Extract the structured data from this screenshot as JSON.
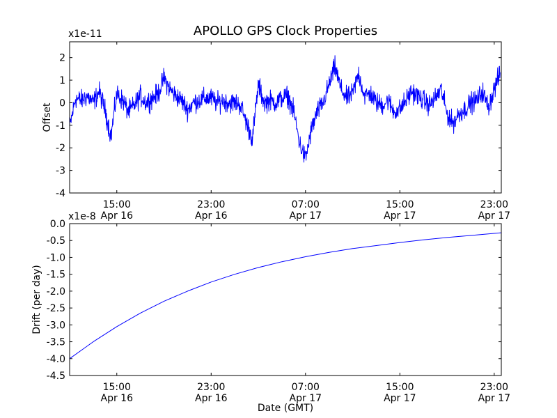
{
  "chart_data": [
    {
      "type": "line",
      "title": "APOLLO GPS Clock Properties",
      "ylabel": "Offset",
      "xlabel": "",
      "scale_label": "x1e-11",
      "ylim": [
        -4,
        2.7
      ],
      "xlim": [
        11.0,
        47.6
      ],
      "yticks": [
        {
          "value": -4,
          "label": "-4"
        },
        {
          "value": -3,
          "label": "-3"
        },
        {
          "value": -2,
          "label": "-2"
        },
        {
          "value": -1,
          "label": "-1"
        },
        {
          "value": 0,
          "label": "0"
        },
        {
          "value": 1,
          "label": "1"
        },
        {
          "value": 2,
          "label": "2"
        }
      ],
      "xticks": [
        {
          "value": 15,
          "time": "15:00",
          "date": "Apr 16"
        },
        {
          "value": 23,
          "time": "23:00",
          "date": "Apr 16"
        },
        {
          "value": 31,
          "time": "07:00",
          "date": "Apr 17"
        },
        {
          "value": 39,
          "time": "15:00",
          "date": "Apr 17"
        },
        {
          "value": 47,
          "time": "23:00",
          "date": "Apr 17"
        }
      ],
      "series_color": "#0000ff",
      "series": [
        {
          "name": "Offset",
          "x": [
            11.0,
            11.5,
            12.0,
            12.5,
            13.0,
            13.5,
            14.0,
            14.5,
            15.0,
            15.5,
            16.0,
            16.5,
            17.0,
            17.5,
            18.0,
            18.5,
            19.0,
            19.5,
            20.0,
            20.5,
            21.0,
            21.5,
            22.0,
            22.5,
            23.0,
            23.5,
            24.0,
            24.5,
            25.0,
            25.5,
            26.0,
            26.5,
            27.0,
            27.5,
            28.0,
            28.5,
            29.0,
            29.5,
            30.0,
            30.5,
            31.0,
            31.5,
            32.0,
            32.5,
            33.0,
            33.5,
            34.0,
            34.5,
            35.0,
            35.5,
            36.0,
            36.5,
            37.0,
            37.5,
            38.0,
            38.5,
            39.0,
            39.5,
            40.0,
            40.5,
            41.0,
            41.5,
            42.0,
            42.5,
            43.0,
            43.5,
            44.0,
            44.5,
            45.0,
            45.5,
            46.0,
            46.5,
            47.0,
            47.5
          ],
          "values": [
            -1.1,
            0.2,
            0.1,
            0.3,
            0.0,
            0.5,
            -0.3,
            -1.5,
            0.4,
            0.1,
            -0.4,
            -0.1,
            0.3,
            0.0,
            0.2,
            0.4,
            1.1,
            0.6,
            0.3,
            0.1,
            -0.3,
            0.0,
            0.1,
            0.2,
            0.2,
            0.0,
            0.1,
            0.0,
            0.0,
            -0.1,
            -0.9,
            -1.6,
            0.8,
            0.0,
            0.1,
            0.0,
            0.2,
            0.3,
            -0.4,
            -1.8,
            -2.5,
            -1.2,
            -0.4,
            0.0,
            0.8,
            1.6,
            0.6,
            0.2,
            0.4,
            1.3,
            0.3,
            0.4,
            0.0,
            -0.1,
            0.1,
            -0.4,
            -0.3,
            0.1,
            0.5,
            0.3,
            0.1,
            -0.1,
            0.2,
            0.6,
            -0.5,
            -0.9,
            -0.5,
            -0.3,
            0.0,
            0.1,
            0.5,
            -0.2,
            0.6,
            1.3
          ]
        }
      ]
    },
    {
      "type": "line",
      "title": "",
      "ylabel": "Drift (per day)",
      "xlabel": "Date (GMT)",
      "scale_label": "x1e-8",
      "ylim": [
        -4.5,
        0.0
      ],
      "xlim": [
        11.0,
        47.6
      ],
      "yticks": [
        {
          "value": -4.5,
          "label": "-4.5"
        },
        {
          "value": -4.0,
          "label": "-4.0"
        },
        {
          "value": -3.5,
          "label": "-3.5"
        },
        {
          "value": -3.0,
          "label": "-3.0"
        },
        {
          "value": -2.5,
          "label": "-2.5"
        },
        {
          "value": -2.0,
          "label": "-2.0"
        },
        {
          "value": -1.5,
          "label": "-1.5"
        },
        {
          "value": -1.0,
          "label": "-1.0"
        },
        {
          "value": -0.5,
          "label": "-0.5"
        },
        {
          "value": 0.0,
          "label": "0.0"
        }
      ],
      "xticks": [
        {
          "value": 15,
          "time": "15:00",
          "date": "Apr 16"
        },
        {
          "value": 23,
          "time": "23:00",
          "date": "Apr 16"
        },
        {
          "value": 31,
          "time": "07:00",
          "date": "Apr 17"
        },
        {
          "value": 39,
          "time": "15:00",
          "date": "Apr 17"
        },
        {
          "value": 47,
          "time": "23:00",
          "date": "Apr 17"
        }
      ],
      "series_color": "#0000ff",
      "series": [
        {
          "name": "Drift",
          "x": [
            11.0,
            13.0,
            15.0,
            17.0,
            19.0,
            21.0,
            23.0,
            25.0,
            27.0,
            29.0,
            31.0,
            33.0,
            35.0,
            37.0,
            39.0,
            41.0,
            43.0,
            45.0,
            47.0,
            47.6
          ],
          "values": [
            -4.0,
            -3.5,
            -3.05,
            -2.65,
            -2.3,
            -2.0,
            -1.73,
            -1.5,
            -1.3,
            -1.13,
            -0.98,
            -0.85,
            -0.74,
            -0.65,
            -0.56,
            -0.48,
            -0.41,
            -0.35,
            -0.29,
            -0.27
          ]
        }
      ]
    }
  ]
}
